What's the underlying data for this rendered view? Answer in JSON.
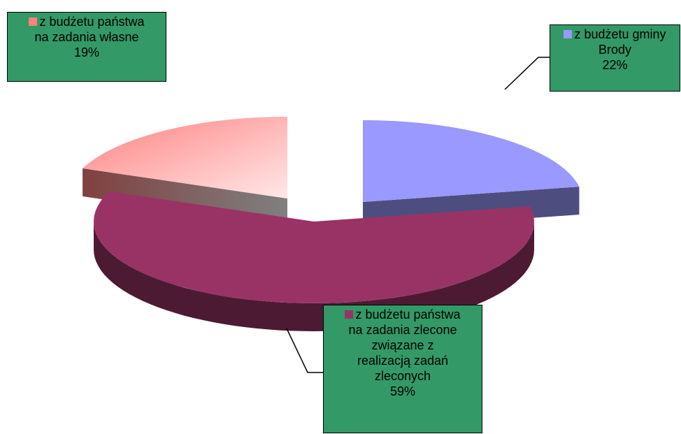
{
  "chart_data": {
    "type": "pie",
    "three_d": true,
    "exploded": true,
    "slices": [
      {
        "label_lines": [
          "z budżetu gminy",
          "Brody"
        ],
        "value": 22,
        "value_label": "22%",
        "color": "#9999ff",
        "side_color": "#4d4d80"
      },
      {
        "label_lines": [
          "z budżetu państwa",
          "na zadania zlecone",
          "związane z",
          "realizacją zadań",
          "zleconych"
        ],
        "value": 59,
        "value_label": "59%",
        "color": "#993366",
        "side_color": "#4d1a33"
      },
      {
        "label_lines": [
          "z budżetu państwa",
          "na zadania własne"
        ],
        "value": 19,
        "value_label": "19%",
        "color": "#ff8080",
        "gradient_light": "#ffe8e8",
        "side_color": "#804040",
        "side_color_light": "#808080"
      }
    ],
    "label_box_color": "#339966",
    "legend": "none"
  }
}
